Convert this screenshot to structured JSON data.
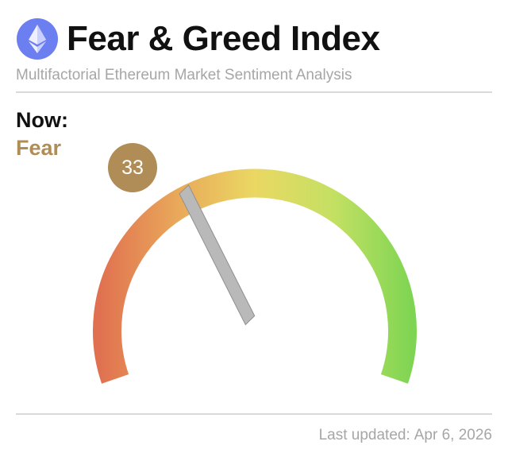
{
  "header": {
    "title": "Fear & Greed Index",
    "subtitle": "Multifactorial Ethereum Market Sentiment Analysis",
    "logo_icon": "ethereum-icon"
  },
  "current": {
    "label": "Now:",
    "sentiment": "Fear",
    "score": "33"
  },
  "gauge": {
    "value": 33,
    "min": 0,
    "max": 100,
    "colors": [
      "#e07050",
      "#e9a85a",
      "#ead863",
      "#c4e063",
      "#7fd553"
    ]
  },
  "footer": {
    "updated_label": "Last updated:",
    "updated_date": "Apr 6, 2026"
  },
  "colors": {
    "accent": "#b08d57",
    "logo": "#6c7ff0",
    "needle": "#b9b9b9",
    "muted_text": "#a6a6a6"
  }
}
